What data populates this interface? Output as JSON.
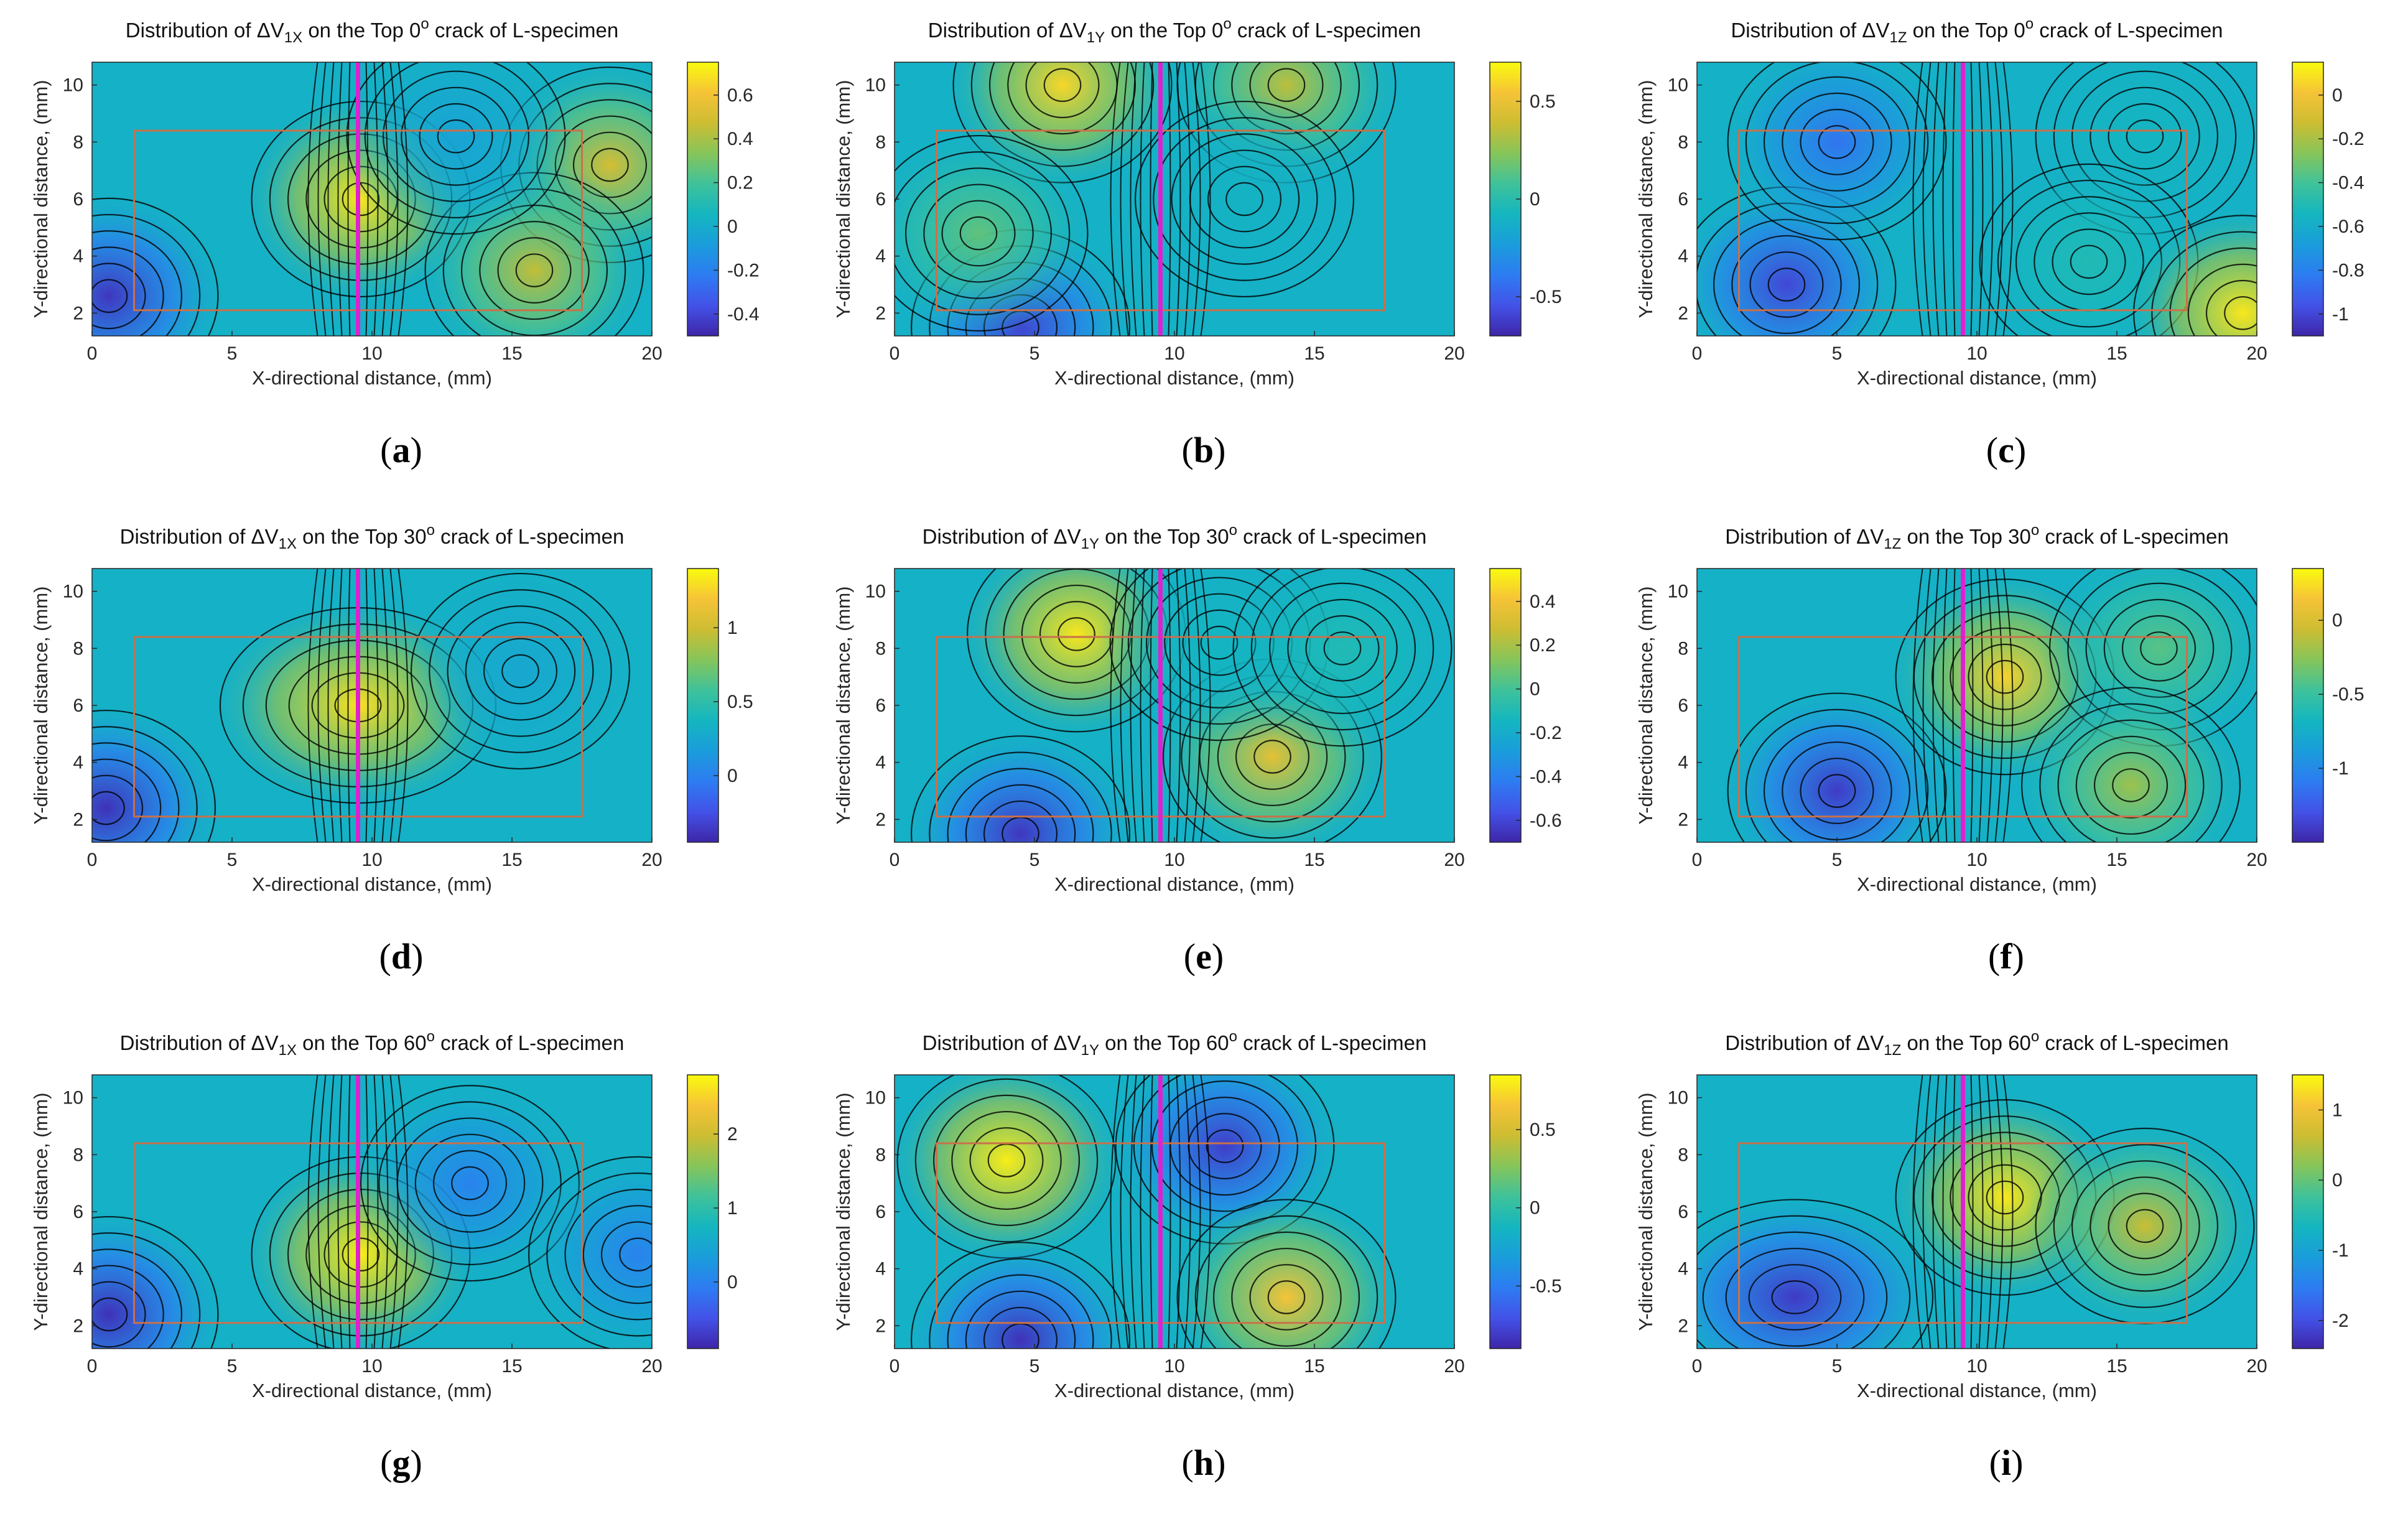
{
  "colors": {
    "crack_line": "#e020d0",
    "region_box": "#c8714a",
    "contour": "#000000",
    "colormap": [
      "#3e26a8",
      "#4352e8",
      "#2d7cf2",
      "#1a9ddb",
      "#14b6c0",
      "#3fc29a",
      "#86c55a",
      "#cdbd32",
      "#f6c337",
      "#f9fb0e"
    ]
  },
  "panels": [
    {
      "id": "a",
      "caption": "a",
      "title": {
        "pre": "Distribution of ",
        "delta": "ΔV",
        "sub": "1X",
        "mid": " on the Top ",
        "angle": "0",
        "deg": "o",
        "post": " crack of L-specimen"
      },
      "xlabel": "X-directional distance, (mm)",
      "ylabel": "Y-directional distance, (mm)",
      "x_ticks": [
        "0",
        "5",
        "10",
        "15",
        "20"
      ],
      "y_ticks": [
        "2",
        "4",
        "6",
        "8",
        "10"
      ],
      "colorbar_ticks": [
        "-0.4",
        "-0.2",
        "0",
        "0.2",
        "0.4",
        "0.6"
      ],
      "colorbar_range": [
        -0.5,
        0.75
      ]
    },
    {
      "id": "b",
      "caption": "b",
      "title": {
        "pre": "Distribution of ",
        "delta": "ΔV",
        "sub": "1Y",
        "mid": " on the Top ",
        "angle": "0",
        "deg": "o",
        "post": " crack of L-specimen"
      },
      "xlabel": "X-directional distance, (mm)",
      "ylabel": "Y-directional distance, (mm)",
      "x_ticks": [
        "0",
        "5",
        "10",
        "15",
        "20"
      ],
      "y_ticks": [
        "2",
        "4",
        "6",
        "8",
        "10"
      ],
      "colorbar_ticks": [
        "-0.5",
        "0",
        "0.5"
      ],
      "colorbar_range": [
        -0.7,
        0.7
      ]
    },
    {
      "id": "c",
      "caption": "c",
      "title": {
        "pre": "Distribution of ",
        "delta": "ΔV",
        "sub": "1Z",
        "mid": " on the Top ",
        "angle": "0",
        "deg": "o",
        "post": " crack of L-specimen"
      },
      "xlabel": "X-directional distance, (mm)",
      "ylabel": "Y-directional distance, (mm)",
      "x_ticks": [
        "0",
        "5",
        "10",
        "15",
        "20"
      ],
      "y_ticks": [
        "2",
        "4",
        "6",
        "8",
        "10"
      ],
      "colorbar_ticks": [
        "-1",
        "-0.8",
        "-0.6",
        "-0.4",
        "-0.2",
        "0"
      ],
      "colorbar_range": [
        -1.1,
        0.15
      ]
    },
    {
      "id": "d",
      "caption": "d",
      "title": {
        "pre": "Distribution of ",
        "delta": "ΔV",
        "sub": "1X",
        "mid": " on the Top ",
        "angle": "30",
        "deg": "o",
        "post": " crack of L-specimen"
      },
      "xlabel": "X-directional distance, (mm)",
      "ylabel": "Y-directional distance, (mm)",
      "x_ticks": [
        "0",
        "5",
        "10",
        "15",
        "20"
      ],
      "y_ticks": [
        "2",
        "4",
        "6",
        "8",
        "10"
      ],
      "colorbar_ticks": [
        "0",
        "0.5",
        "1"
      ],
      "colorbar_range": [
        -0.45,
        1.4
      ]
    },
    {
      "id": "e",
      "caption": "e",
      "title": {
        "pre": "Distribution of ",
        "delta": "ΔV",
        "sub": "1Y",
        "mid": " on the Top ",
        "angle": "30",
        "deg": "o",
        "post": " crack of L-specimen"
      },
      "xlabel": "X-directional distance, (mm)",
      "ylabel": "Y-directional distance, (mm)",
      "x_ticks": [
        "0",
        "5",
        "10",
        "15",
        "20"
      ],
      "y_ticks": [
        "2",
        "4",
        "6",
        "8",
        "10"
      ],
      "colorbar_ticks": [
        "-0.6",
        "-0.4",
        "-0.2",
        "0",
        "0.2",
        "0.4"
      ],
      "colorbar_range": [
        -0.7,
        0.55
      ]
    },
    {
      "id": "f",
      "caption": "f",
      "title": {
        "pre": "Distribution of ",
        "delta": "ΔV",
        "sub": "1Z",
        "mid": " on the Top ",
        "angle": "30",
        "deg": "o",
        "post": " crack of L-specimen"
      },
      "xlabel": "X-directional distance, (mm)",
      "ylabel": "Y-directional distance, (mm)",
      "x_ticks": [
        "0",
        "5",
        "10",
        "15",
        "20"
      ],
      "y_ticks": [
        "2",
        "4",
        "6",
        "8",
        "10"
      ],
      "colorbar_ticks": [
        "-1",
        "-0.5",
        "0"
      ],
      "colorbar_range": [
        -1.5,
        0.35
      ]
    },
    {
      "id": "g",
      "caption": "g",
      "title": {
        "pre": "Distribution of ",
        "delta": "ΔV",
        "sub": "1X",
        "mid": " on the Top ",
        "angle": "60",
        "deg": "o",
        "post": " crack of L-specimen"
      },
      "xlabel": "X-directional distance, (mm)",
      "ylabel": "Y-directional distance, (mm)",
      "x_ticks": [
        "0",
        "5",
        "10",
        "15",
        "20"
      ],
      "y_ticks": [
        "2",
        "4",
        "6",
        "8",
        "10"
      ],
      "colorbar_ticks": [
        "0",
        "1",
        "2"
      ],
      "colorbar_range": [
        -0.9,
        2.8
      ]
    },
    {
      "id": "h",
      "caption": "h",
      "title": {
        "pre": "Distribution of ",
        "delta": "ΔV",
        "sub": "1Y",
        "mid": " on the Top ",
        "angle": "60",
        "deg": "o",
        "post": " crack of L-specimen"
      },
      "xlabel": "X-directional distance, (mm)",
      "ylabel": "Y-directional distance, (mm)",
      "x_ticks": [
        "0",
        "5",
        "10",
        "15",
        "20"
      ],
      "y_ticks": [
        "2",
        "4",
        "6",
        "8",
        "10"
      ],
      "colorbar_ticks": [
        "-0.5",
        "0",
        "0.5"
      ],
      "colorbar_range": [
        -0.9,
        0.85
      ]
    },
    {
      "id": "i",
      "caption": "i",
      "title": {
        "pre": "Distribution of ",
        "delta": "ΔV",
        "sub": "1Z",
        "mid": " on the Top ",
        "angle": "60",
        "deg": "o",
        "post": " crack of L-specimen"
      },
      "xlabel": "X-directional distance, (mm)",
      "ylabel": "Y-directional distance, (mm)",
      "x_ticks": [
        "0",
        "5",
        "10",
        "15",
        "20"
      ],
      "y_ticks": [
        "2",
        "4",
        "6",
        "8",
        "10"
      ],
      "colorbar_ticks": [
        "-2",
        "-1",
        "0",
        "1"
      ],
      "colorbar_range": [
        -2.4,
        1.5
      ]
    }
  ],
  "chart_data": [
    {
      "type": "heatmap",
      "title": "Distribution of ΔV1X on the Top 0o crack of L-specimen",
      "xlabel": "X-directional distance, (mm)",
      "ylabel": "Y-directional distance, (mm)",
      "xlim": [
        0,
        20
      ],
      "ylim": [
        1.2,
        10.8
      ],
      "clim": [
        -0.5,
        0.75
      ],
      "crack_x": 9.5,
      "region": {
        "x": [
          1.5,
          17.5
        ],
        "y": [
          2.1,
          8.4
        ]
      },
      "features": [
        {
          "x": 0.6,
          "y": 2.6,
          "value": -0.45
        },
        {
          "x": 9.6,
          "y": 6.0,
          "value": 0.7
        },
        {
          "x": 18.5,
          "y": 7.2,
          "value": 0.5
        },
        {
          "x": 15.8,
          "y": 3.5,
          "value": 0.45
        },
        {
          "x": 13.0,
          "y": 8.2,
          "value": -0.05
        }
      ]
    },
    {
      "type": "heatmap",
      "title": "Distribution of ΔV1Y on the Top 0o crack of L-specimen",
      "xlabel": "X-directional distance, (mm)",
      "ylabel": "Y-directional distance, (mm)",
      "xlim": [
        0,
        20
      ],
      "ylim": [
        1.2,
        10.8
      ],
      "clim": [
        -0.7,
        0.7
      ],
      "crack_x": 9.5,
      "region": {
        "x": [
          1.5,
          17.5
        ],
        "y": [
          2.1,
          8.4
        ]
      },
      "features": [
        {
          "x": 6.0,
          "y": 10.0,
          "value": 0.6
        },
        {
          "x": 4.5,
          "y": 1.5,
          "value": -0.6
        },
        {
          "x": 14.0,
          "y": 10.0,
          "value": 0.35
        },
        {
          "x": 3.0,
          "y": 4.8,
          "value": 0.15
        },
        {
          "x": 12.5,
          "y": 6.0,
          "value": -0.1
        }
      ]
    },
    {
      "type": "heatmap",
      "title": "Distribution of ΔV1Z on the Top 0o crack of L-specimen",
      "xlabel": "X-directional distance, (mm)",
      "ylabel": "Y-directional distance, (mm)",
      "xlim": [
        0,
        20
      ],
      "ylim": [
        1.2,
        10.8
      ],
      "clim": [
        -1.1,
        0.15
      ],
      "crack_x": 9.5,
      "region": {
        "x": [
          1.5,
          17.5
        ],
        "y": [
          2.1,
          8.4
        ]
      },
      "features": [
        {
          "x": 3.2,
          "y": 3.0,
          "value": -1.0
        },
        {
          "x": 5.0,
          "y": 8.0,
          "value": -0.85
        },
        {
          "x": 16.0,
          "y": 8.2,
          "value": -0.55
        },
        {
          "x": 14.0,
          "y": 3.8,
          "value": -0.5
        },
        {
          "x": 19.5,
          "y": 2.0,
          "value": 0.1
        }
      ]
    },
    {
      "type": "heatmap",
      "title": "Distribution of ΔV1X on the Top 30o crack of L-specimen",
      "xlabel": "X-directional distance, (mm)",
      "ylabel": "Y-directional distance, (mm)",
      "xlim": [
        0,
        20
      ],
      "ylim": [
        1.2,
        10.8
      ],
      "clim": [
        -0.45,
        1.4
      ],
      "crack_x": 9.5,
      "region": {
        "x": [
          1.5,
          17.5
        ],
        "y": [
          2.1,
          8.4
        ]
      },
      "features": [
        {
          "x": 9.5,
          "y": 6.0,
          "value": 1.3
        },
        {
          "x": 0.5,
          "y": 2.4,
          "value": -0.4
        },
        {
          "x": 15.3,
          "y": 7.2,
          "value": 0.25
        }
      ]
    },
    {
      "type": "heatmap",
      "title": "Distribution of ΔV1Y on the Top 30o crack of L-specimen",
      "xlabel": "X-directional distance, (mm)",
      "ylabel": "Y-directional distance, (mm)",
      "xlim": [
        0,
        20
      ],
      "ylim": [
        1.2,
        10.8
      ],
      "clim": [
        -0.7,
        0.55
      ],
      "crack_x": 9.5,
      "region": {
        "x": [
          1.5,
          17.5
        ],
        "y": [
          2.1,
          8.4
        ]
      },
      "features": [
        {
          "x": 6.5,
          "y": 8.5,
          "value": 0.5
        },
        {
          "x": 4.5,
          "y": 1.5,
          "value": -0.65
        },
        {
          "x": 13.5,
          "y": 4.2,
          "value": 0.35
        },
        {
          "x": 11.6,
          "y": 8.2,
          "value": -0.15
        },
        {
          "x": 16.0,
          "y": 8.0,
          "value": -0.1
        }
      ]
    },
    {
      "type": "heatmap",
      "title": "Distribution of ΔV1Z on the Top 30o crack of L-specimen",
      "xlabel": "X-directional distance, (mm)",
      "ylabel": "Y-directional distance, (mm)",
      "xlim": [
        0,
        20
      ],
      "ylim": [
        1.2,
        10.8
      ],
      "clim": [
        -1.5,
        0.35
      ],
      "crack_x": 9.5,
      "region": {
        "x": [
          1.5,
          17.5
        ],
        "y": [
          2.1,
          8.4
        ]
      },
      "features": [
        {
          "x": 5.0,
          "y": 3.0,
          "value": -1.4
        },
        {
          "x": 11.0,
          "y": 7.0,
          "value": 0.2
        },
        {
          "x": 16.5,
          "y": 8.0,
          "value": -0.4
        },
        {
          "x": 15.5,
          "y": 3.2,
          "value": -0.2
        }
      ]
    },
    {
      "type": "heatmap",
      "title": "Distribution of ΔV1X on the Top 60o crack of L-specimen",
      "xlabel": "X-directional distance, (mm)",
      "ylabel": "Y-directional distance, (mm)",
      "xlim": [
        0,
        20
      ],
      "ylim": [
        1.2,
        10.8
      ],
      "clim": [
        -0.9,
        2.8
      ],
      "crack_x": 9.5,
      "region": {
        "x": [
          1.5,
          17.5
        ],
        "y": [
          2.1,
          8.4
        ]
      },
      "features": [
        {
          "x": 9.6,
          "y": 4.5,
          "value": 2.7
        },
        {
          "x": 0.6,
          "y": 2.4,
          "value": -0.8
        },
        {
          "x": 13.5,
          "y": 7.0,
          "value": 0.0
        },
        {
          "x": 19.5,
          "y": 4.5,
          "value": 0.0
        }
      ]
    },
    {
      "type": "heatmap",
      "title": "Distribution of ΔV1Y on the Top 60o crack of L-specimen",
      "xlabel": "X-directional distance, (mm)",
      "ylabel": "Y-directional distance, (mm)",
      "xlim": [
        0,
        20
      ],
      "ylim": [
        1.2,
        10.8
      ],
      "clim": [
        -0.9,
        0.85
      ],
      "crack_x": 9.5,
      "region": {
        "x": [
          1.5,
          17.5
        ],
        "y": [
          2.1,
          8.4
        ]
      },
      "features": [
        {
          "x": 4.0,
          "y": 7.8,
          "value": 0.8
        },
        {
          "x": 4.5,
          "y": 1.5,
          "value": -0.85
        },
        {
          "x": 11.8,
          "y": 8.3,
          "value": -0.8
        },
        {
          "x": 14.0,
          "y": 3.0,
          "value": 0.65
        }
      ]
    },
    {
      "type": "heatmap",
      "title": "Distribution of ΔV1Z on the Top 60o crack of L-specimen",
      "xlabel": "X-directional distance, (mm)",
      "ylabel": "Y-directional distance, (mm)",
      "xlim": [
        0,
        20
      ],
      "ylim": [
        1.2,
        10.8
      ],
      "clim": [
        -2.4,
        1.5
      ],
      "crack_x": 9.5,
      "region": {
        "x": [
          1.5,
          17.5
        ],
        "y": [
          2.1,
          8.4
        ]
      },
      "features": [
        {
          "x": 3.5,
          "y": 3.0,
          "value": -2.2
        },
        {
          "x": 11.0,
          "y": 6.5,
          "value": 1.35
        },
        {
          "x": 16.0,
          "y": 5.5,
          "value": 0.6
        }
      ]
    }
  ]
}
